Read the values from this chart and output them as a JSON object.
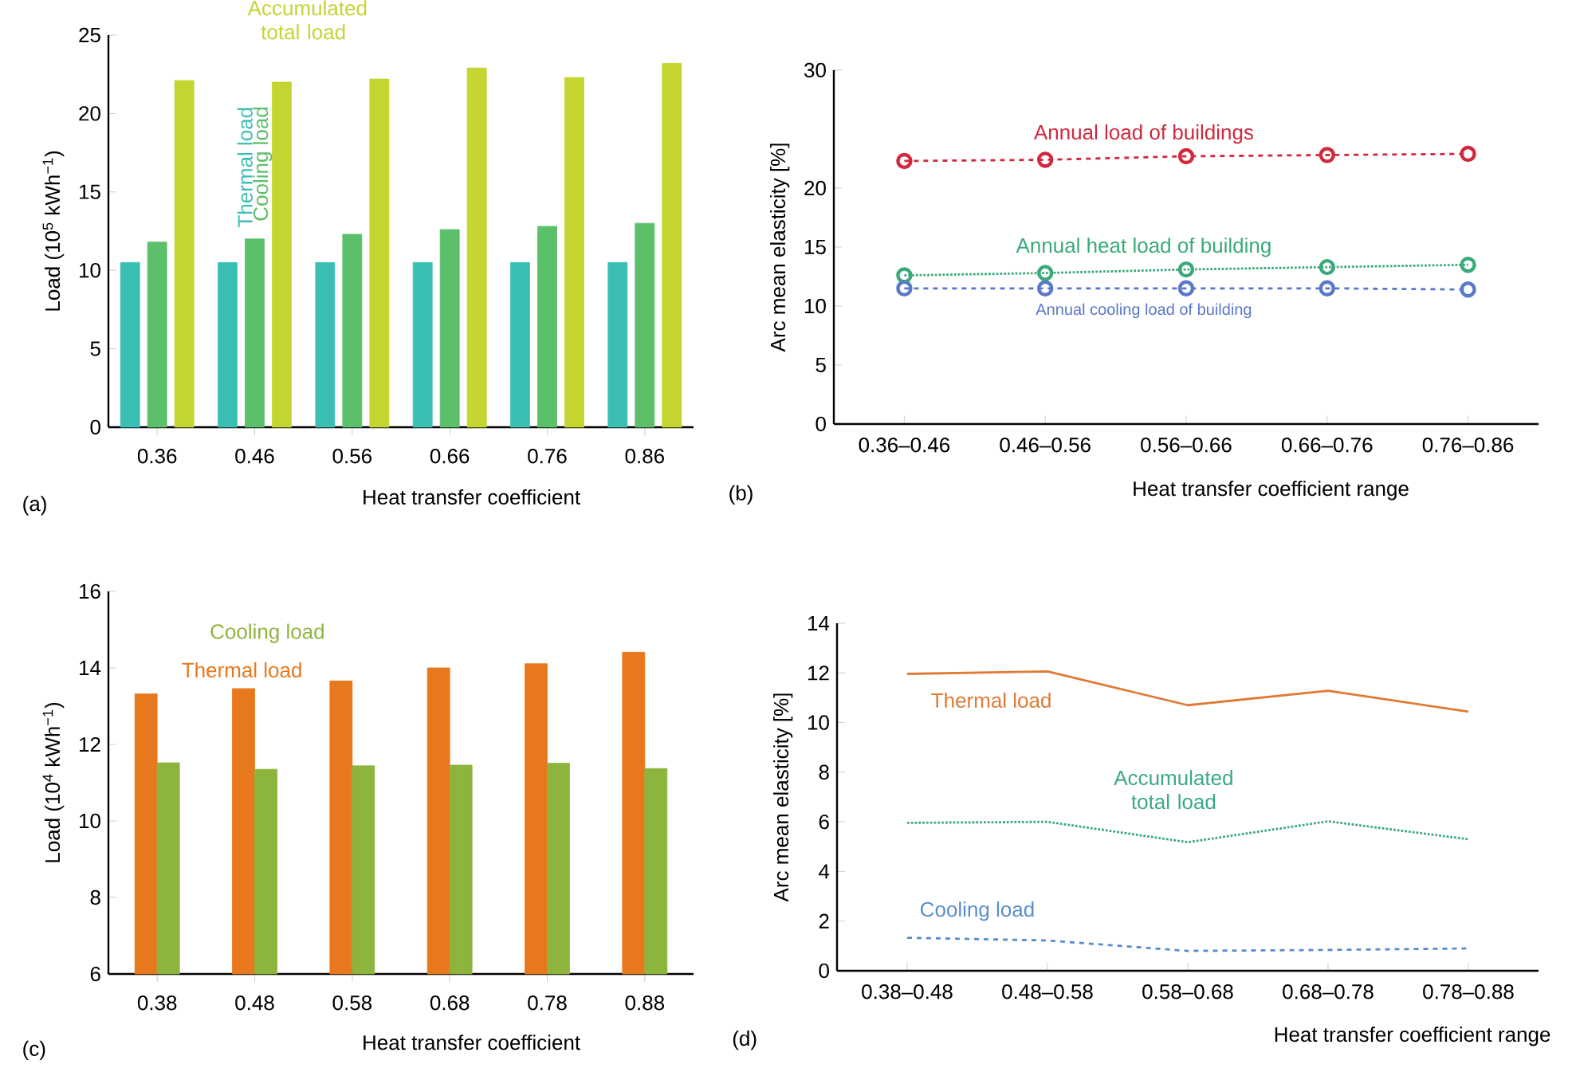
{
  "chart_data": [
    {
      "type": "bar",
      "xlabel": "Heat transfer coefficient",
      "ylabel": "Load (10$^{5}$ kWh$^{−1}$)",
      "categories": [
        "0.36",
        "0.46",
        "0.56",
        "0.66",
        "0.76",
        "0.86"
      ],
      "ylim": [
        0,
        25
      ],
      "yticks": [
        0,
        5,
        10,
        15,
        20,
        25
      ],
      "annotations": [
        "(a)"
      ],
      "series": [
        {
          "name": "Thermal load",
          "color": "#3bbfb5",
          "values": [
            10.5,
            10.5,
            10.5,
            10.5,
            10.5,
            10.5
          ]
        },
        {
          "name": "Cooling load",
          "color": "#5cbf6a",
          "values": [
            11.8,
            12.0,
            12.3,
            12.6,
            12.8,
            13.0
          ]
        },
        {
          "name": "Accumulated total load",
          "color": "#c4d430",
          "values": [
            22.1,
            22.0,
            22.2,
            22.9,
            22.3,
            23.2
          ]
        }
      ]
    },
    {
      "type": "line",
      "xlabel": "Heat transfer coefficient range",
      "ylabel": "Arc mean elasticity [%]",
      "categories": [
        "0.36–0.46",
        "0.46–0.56",
        "0.56–0.66",
        "0.66–0.76",
        "0.76–0.86"
      ],
      "ylim": [
        0,
        30
      ],
      "yticks": [
        0,
        5,
        10,
        15,
        20,
        30
      ],
      "marker": "circle",
      "annotations": [
        "(b)"
      ],
      "series": [
        {
          "name": "Annual load of buildings",
          "color": "#d0283c",
          "line_style": "dashed",
          "values": [
            22.3,
            22.4,
            22.7,
            22.8,
            22.9
          ]
        },
        {
          "name": "Annual heat load of building",
          "color": "#3aaa78",
          "line_style": "dotted",
          "values": [
            12.6,
            12.8,
            13.1,
            13.3,
            13.5
          ]
        },
        {
          "name": "Annual cooling load of building",
          "color": "#5a78c8",
          "line_style": "dashed",
          "values": [
            11.5,
            11.5,
            11.5,
            11.5,
            11.4
          ]
        }
      ]
    },
    {
      "type": "bar",
      "xlabel": "Heat transfer coefficient",
      "ylabel": "Load (10$^{4}$ kWh$^{−1}$)",
      "categories": [
        "0.38",
        "0.48",
        "0.58",
        "0.68",
        "0.78",
        "0.88"
      ],
      "ylim": [
        6,
        16
      ],
      "yticks": [
        6,
        8,
        10,
        12,
        14,
        16
      ],
      "annotations": [
        "(c)"
      ],
      "series": [
        {
          "name": "Thermal load",
          "color": "#e8781e",
          "values": [
            13.32,
            13.46,
            13.66,
            14.0,
            14.11,
            14.41
          ]
        },
        {
          "name": "Cooling load",
          "color": "#8db43c",
          "values": [
            11.52,
            11.35,
            11.44,
            11.46,
            11.51,
            11.37
          ]
        }
      ]
    },
    {
      "type": "line",
      "xlabel": "Heat transfer coefficient range",
      "ylabel": "Arc mean elasticity [%]",
      "categories": [
        "0.38–0.48",
        "0.48–0.58",
        "0.58–0.68",
        "0.68–0.78",
        "0.78–0.88"
      ],
      "ylim": [
        0,
        14
      ],
      "yticks": [
        0,
        2,
        4,
        6,
        8,
        10,
        12,
        14
      ],
      "annotations": [
        "(d)"
      ],
      "series": [
        {
          "name": "Thermal load",
          "color": "#e07a35",
          "line_style": "solid",
          "values": [
            11.96,
            12.06,
            10.7,
            11.28,
            10.44
          ]
        },
        {
          "name": "Accumulated total load",
          "color": "#3aa888",
          "line_style": "dotted",
          "values": [
            5.96,
            6.0,
            5.18,
            6.02,
            5.3
          ]
        },
        {
          "name": "Cooling load",
          "color": "#5a8ccc",
          "line_style": "dashed",
          "values": [
            1.33,
            1.22,
            0.8,
            0.84,
            0.9
          ]
        }
      ]
    }
  ]
}
